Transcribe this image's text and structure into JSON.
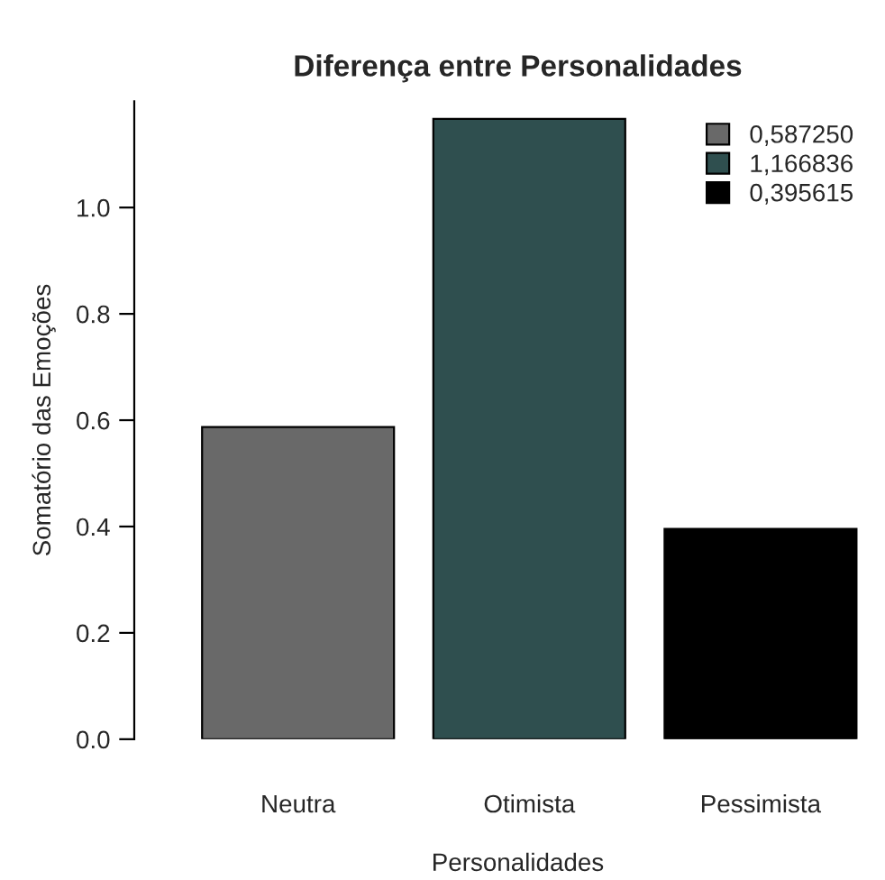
{
  "chart_data": {
    "type": "bar",
    "title": "Diferença entre Personalidades",
    "xlabel": "Personalidades",
    "ylabel": "Somatório das Emoções",
    "categories": [
      "Neutra",
      "Otimista",
      "Pessimista"
    ],
    "series": [
      {
        "name": "0,587250",
        "color": "#696969",
        "values": [
          0.58725,
          null,
          null
        ]
      },
      {
        "name": "1,166836",
        "color": "#2f4f4f",
        "values": [
          null,
          1.166836,
          null
        ]
      },
      {
        "name": "0,395615",
        "color": "#000000",
        "values": [
          null,
          null,
          0.395615
        ]
      }
    ],
    "ylim": [
      0,
      1.2
    ],
    "yticks": [
      {
        "value": 0,
        "label": "0.0"
      },
      {
        "value": 0.2,
        "label": "0.2"
      },
      {
        "value": 0.4,
        "label": "0.4"
      },
      {
        "value": 0.6,
        "label": "0.6"
      },
      {
        "value": 0.8,
        "label": "0.8"
      },
      {
        "value": 1,
        "label": "1.0"
      }
    ],
    "grid": false,
    "legend": "top right"
  }
}
